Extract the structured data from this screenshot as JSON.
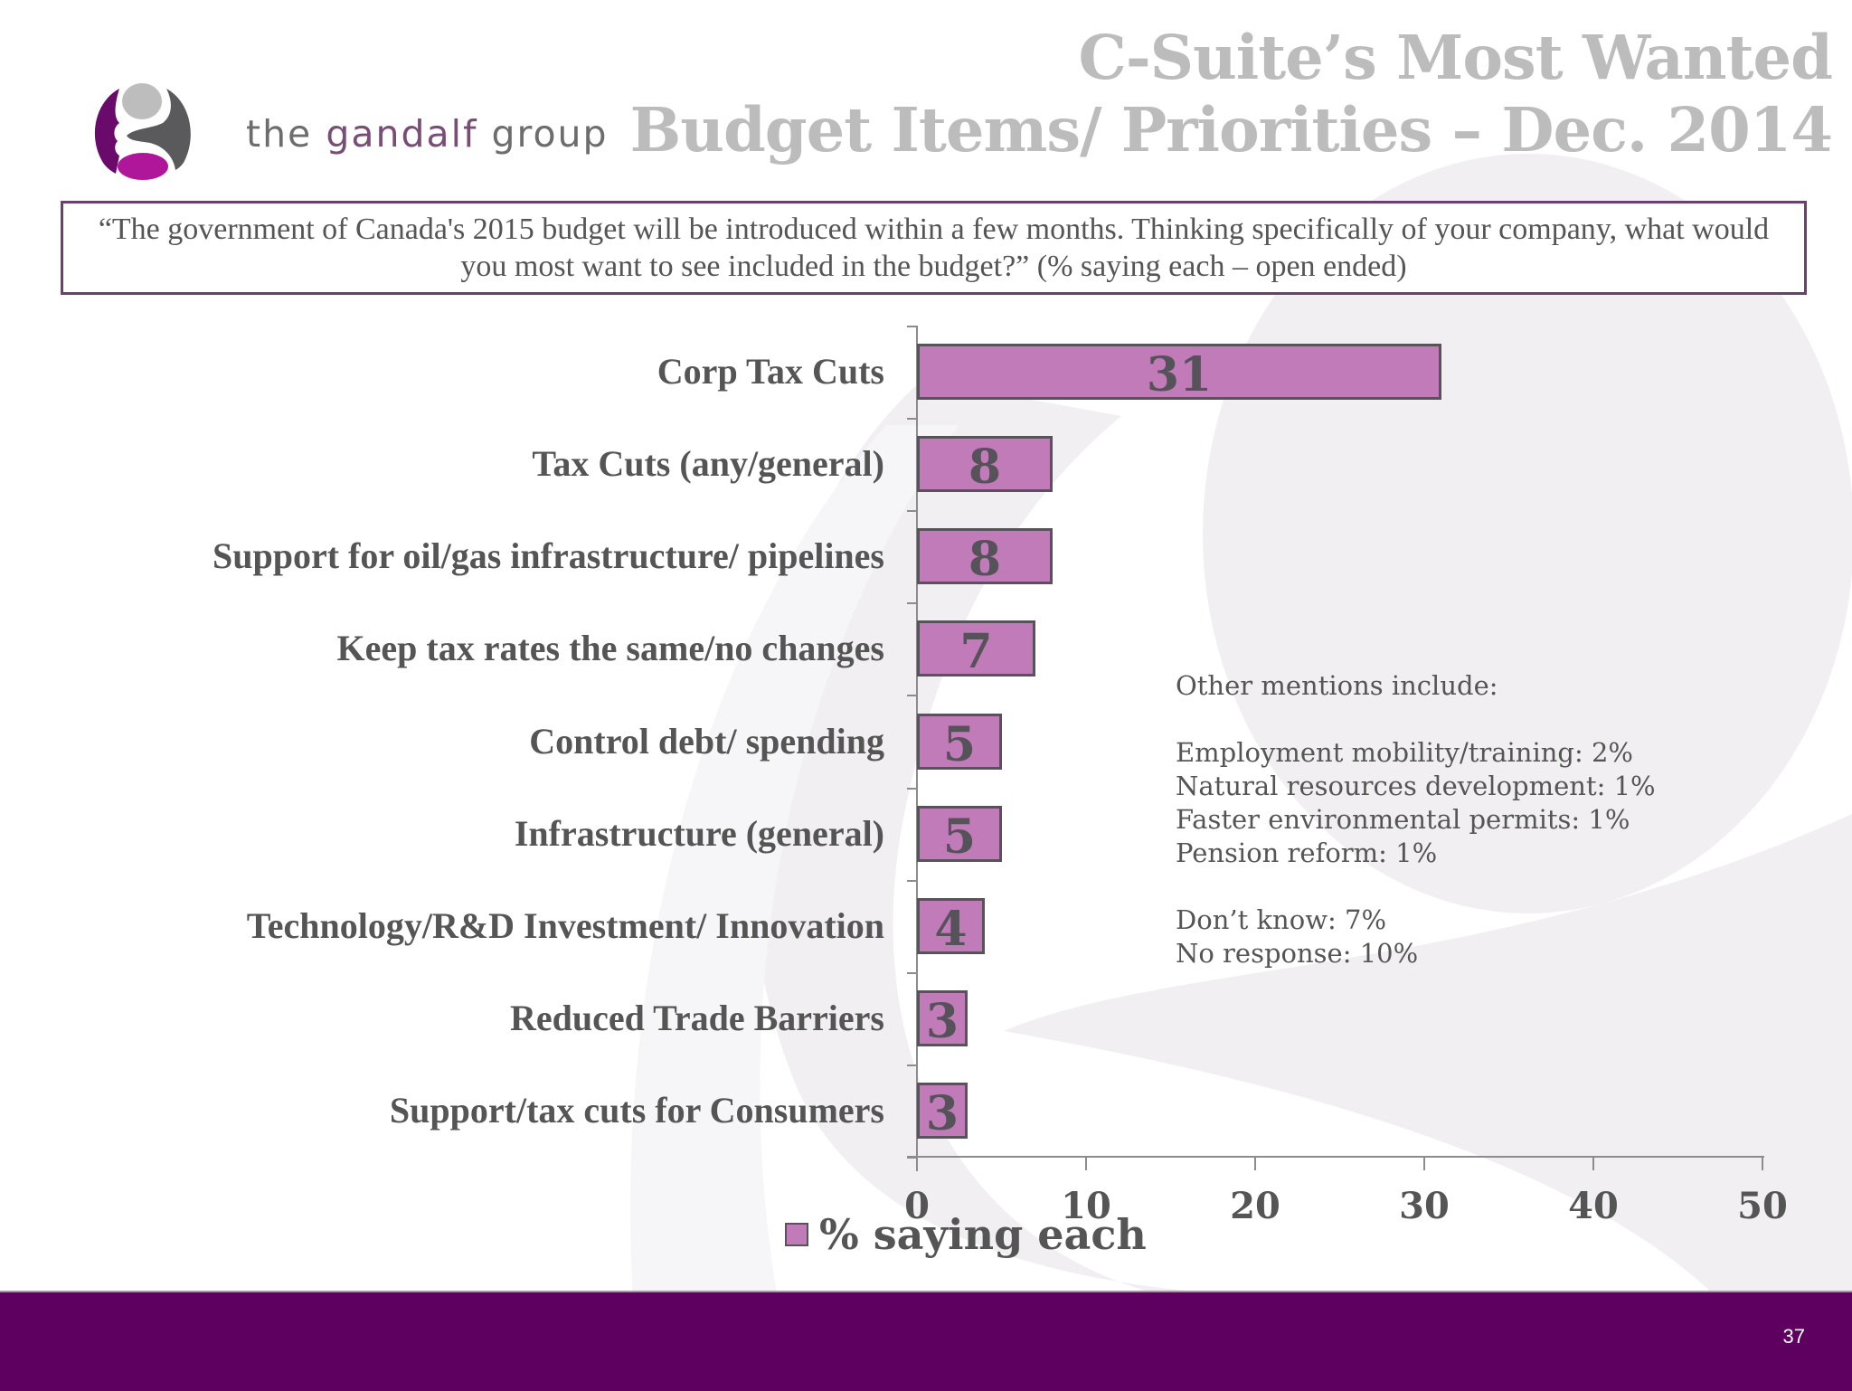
{
  "brand": {
    "logo_icon": "gandalf-g-logo-icon",
    "name_prefix": "the ",
    "name_highlight": "gandalf",
    "name_suffix": " group"
  },
  "slide": {
    "title_line1": "C-Suite’s Most Wanted",
    "title_line2": "Budget Items/ Priorities – Dec. 2014",
    "question": "“The government of Canada's 2015 budget will be introduced within a few months. Thinking specifically of your company, what would you most want to see included in the budget?” (% saying each – open ended)",
    "page_number": "37"
  },
  "notes": {
    "heading": "Other mentions include:",
    "mentions": [
      "Employment mobility/training: 2%",
      "Natural resources development: 1%",
      "Faster environmental permits: 1%",
      "Pension reform: 1%"
    ],
    "other": [
      "Don’t know: 7%",
      "No response: 10%"
    ]
  },
  "colors": {
    "bar_fill": "#c07bb8",
    "bar_border": "#58535a",
    "title": "#bcbcbc",
    "footer": "#5e0060",
    "box_border": "#6b3f6f"
  },
  "chart_data": {
    "type": "bar",
    "orientation": "horizontal",
    "title": "C-Suite’s Most Wanted Budget Items/ Priorities – Dec. 2014",
    "categories": [
      "Corp Tax Cuts",
      "Tax Cuts (any/general)",
      "Support for oil/gas infrastructure/ pipelines",
      "Keep tax rates the same/no changes",
      "Control debt/ spending",
      "Infrastructure (general)",
      "Technology/R&D Investment/ Innovation",
      "Reduced Trade Barriers",
      "Support/tax cuts for Consumers"
    ],
    "series": [
      {
        "name": "% saying each",
        "values": [
          31,
          8,
          8,
          7,
          5,
          5,
          4,
          3,
          3
        ]
      }
    ],
    "values": [
      31,
      8,
      8,
      7,
      5,
      5,
      4,
      3,
      3
    ],
    "xlabel": "",
    "ylabel": "",
    "xlim": [
      0,
      50
    ],
    "xticks": [
      "0",
      "10",
      "20",
      "30",
      "40",
      "50"
    ],
    "grid": false,
    "legend": {
      "entries": [
        "% saying each"
      ],
      "position": "bottom"
    },
    "data_labels": true
  }
}
